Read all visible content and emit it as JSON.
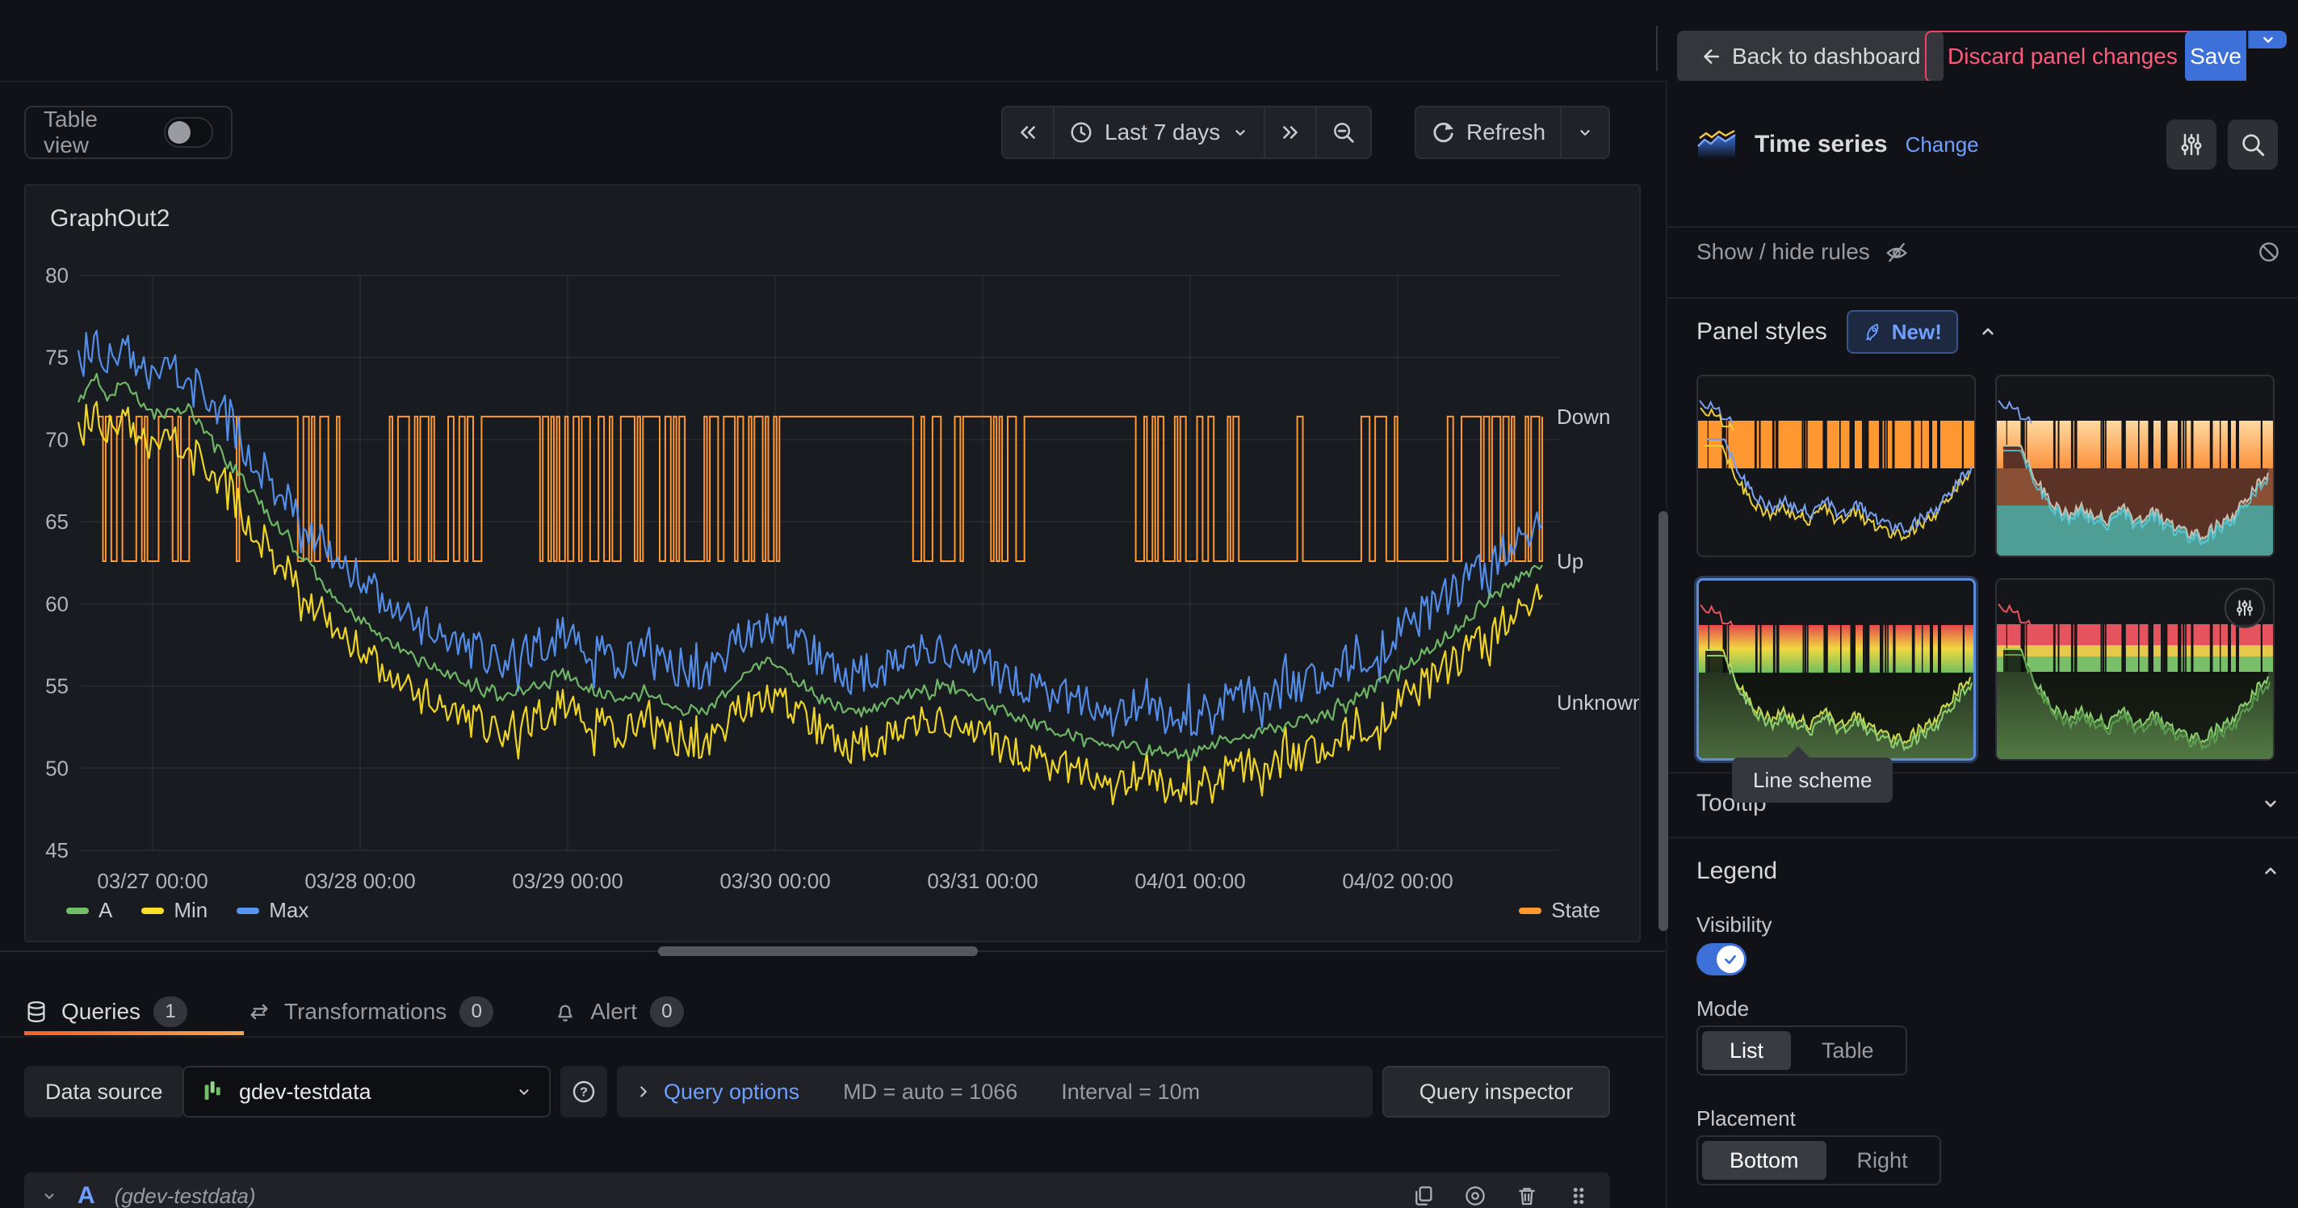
{
  "colors": {
    "green": "#73bf69",
    "yellow": "#fade2a",
    "blue": "#5794f2",
    "orange": "#ff9830",
    "link": "#6e9fff",
    "save": "#3d71d9",
    "discard": "#ff5b7e"
  },
  "header": {
    "back_label": "Back to dashboard",
    "discard_label": "Discard panel changes",
    "save_label": "Save"
  },
  "toolbar": {
    "table_view_label": "Table view",
    "time_range_label": "Last 7 days",
    "refresh_label": "Refresh"
  },
  "chart_data": {
    "type": "line",
    "title": "GraphOut2",
    "x_tick_labels": [
      "03/27 00:00",
      "03/28 00:00",
      "03/29 00:00",
      "03/30 00:00",
      "03/31 00:00",
      "04/01 00:00",
      "04/02 00:00"
    ],
    "y_ticks": [
      45,
      50,
      55,
      60,
      65,
      70,
      75,
      80
    ],
    "ylim": [
      45,
      80
    ],
    "grid": true,
    "legend_position": "bottom",
    "right_axis_labels": [
      {
        "label": "Down",
        "value": 71.4
      },
      {
        "label": "Up",
        "value": 62.6
      },
      {
        "label": "Unknown",
        "value": 54.0
      }
    ],
    "series": [
      {
        "name": "A",
        "color": "#73bf69",
        "noise": 0.35,
        "offset": 0
      },
      {
        "name": "Min",
        "color": "#fade2a",
        "noise": 1.15,
        "offset": -2.0
      },
      {
        "name": "Max",
        "color": "#5794f2",
        "noise": 1.25,
        "offset": 2.3
      },
      {
        "name": "State",
        "color": "#ff9830",
        "type": "telegraph",
        "down_value": 71.4,
        "up_value": 62.6,
        "start_t": 0.013
      }
    ],
    "trend": [
      [
        0,
        72.3
      ],
      [
        0.012,
        74.0
      ],
      [
        0.02,
        72.6
      ],
      [
        0.03,
        73.6
      ],
      [
        0.045,
        72.0
      ],
      [
        0.06,
        71.6
      ],
      [
        0.075,
        71.9
      ],
      [
        0.09,
        70.2
      ],
      [
        0.11,
        67.8
      ],
      [
        0.13,
        65.4
      ],
      [
        0.15,
        63.1
      ],
      [
        0.17,
        61.0
      ],
      [
        0.19,
        59.2
      ],
      [
        0.21,
        57.9
      ],
      [
        0.23,
        56.6
      ],
      [
        0.25,
        55.9
      ],
      [
        0.27,
        54.9
      ],
      [
        0.29,
        54.3
      ],
      [
        0.31,
        54.9
      ],
      [
        0.33,
        55.8
      ],
      [
        0.35,
        54.8
      ],
      [
        0.37,
        54.1
      ],
      [
        0.39,
        54.5
      ],
      [
        0.41,
        53.5
      ],
      [
        0.43,
        53.6
      ],
      [
        0.45,
        55.3
      ],
      [
        0.47,
        56.5
      ],
      [
        0.49,
        55.4
      ],
      [
        0.51,
        54.1
      ],
      [
        0.53,
        53.3
      ],
      [
        0.55,
        53.8
      ],
      [
        0.57,
        54.6
      ],
      [
        0.59,
        54.9
      ],
      [
        0.61,
        54.4
      ],
      [
        0.63,
        53.4
      ],
      [
        0.65,
        52.8
      ],
      [
        0.67,
        52.2
      ],
      [
        0.7,
        51.6
      ],
      [
        0.73,
        51.1
      ],
      [
        0.76,
        50.8
      ],
      [
        0.79,
        51.8
      ],
      [
        0.82,
        52.5
      ],
      [
        0.85,
        53.2
      ],
      [
        0.88,
        54.6
      ],
      [
        0.91,
        56.4
      ],
      [
        0.94,
        58.4
      ],
      [
        0.965,
        60.3
      ],
      [
        0.985,
        61.6
      ],
      [
        1,
        62.4
      ]
    ],
    "samples": 560,
    "seed": 42,
    "state_gaps": [
      {
        "t": 0.49,
        "len": 12
      },
      {
        "t": 0.645,
        "len": 9
      }
    ]
  },
  "queries": {
    "tabs": [
      {
        "label": "Queries",
        "count": "1"
      },
      {
        "label": "Transformations",
        "count": "0"
      },
      {
        "label": "Alert",
        "count": "0"
      }
    ],
    "datasource_label": "Data source",
    "datasource_value": "gdev-testdata",
    "query_options_label": "Query options",
    "md_meta": "MD = auto = 1066",
    "interval_meta": "Interval = 10m",
    "inspector_label": "Query inspector",
    "row": {
      "ref": "A",
      "ds": "(gdev-testdata)"
    }
  },
  "sidebar": {
    "viz": {
      "name": "Time series",
      "change_label": "Change"
    },
    "rules_label": "Show / hide rules",
    "panel_styles": {
      "title": "Panel styles",
      "badge": "New!",
      "items": [
        {
          "style": "orange-classic"
        },
        {
          "style": "orange-filled"
        },
        {
          "style": "line-scheme",
          "selected": true
        },
        {
          "style": "threshold-bands",
          "has_options_badge": true
        }
      ],
      "tooltip": "Line scheme"
    },
    "tooltip_section": "Tooltip",
    "legend": {
      "title": "Legend",
      "visibility_label": "Visibility",
      "visibility_on": true,
      "mode_label": "Mode",
      "mode_options": [
        "List",
        "Table"
      ],
      "mode_selected": "List",
      "placement_label": "Placement",
      "placement_options": [
        "Bottom",
        "Right"
      ],
      "placement_selected": "Bottom"
    }
  }
}
